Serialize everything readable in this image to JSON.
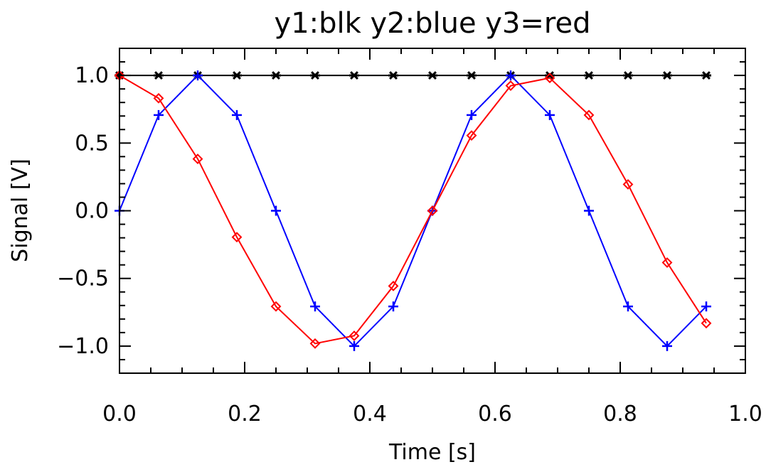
{
  "chart_data": {
    "type": "line",
    "title": "y1:blk y2:blue y3=red",
    "xlabel": "Time [s]",
    "ylabel": "Signal [V]",
    "xlim": [
      0.0,
      1.0
    ],
    "ylim": [
      -1.2,
      1.2
    ],
    "x_ticks": [
      0.0,
      0.2,
      0.4,
      0.6,
      0.8,
      1.0
    ],
    "x_tick_labels": [
      "0.0",
      "0.2",
      "0.4",
      "0.6",
      "0.8",
      "1.0"
    ],
    "y_ticks": [
      1.0,
      0.5,
      0.0,
      -0.5,
      -1.0
    ],
    "y_tick_labels": [
      "1.0",
      "0.5",
      "0.0",
      "−0.5",
      "−1.0"
    ],
    "grid": false,
    "x": [
      0.0,
      0.0625,
      0.125,
      0.1875,
      0.25,
      0.3125,
      0.375,
      0.4375,
      0.5,
      0.5625,
      0.625,
      0.6875,
      0.75,
      0.8125,
      0.875,
      0.9375
    ],
    "series": [
      {
        "color": "#000000",
        "marker": "asterisk",
        "values": [
          1,
          1,
          1,
          1,
          1,
          1,
          1,
          1,
          1,
          1,
          1,
          1,
          1,
          1,
          1,
          1
        ]
      },
      {
        "color": "#0000ff",
        "marker": "plus",
        "values": [
          0.0,
          0.707,
          1.0,
          0.707,
          0.0,
          -0.707,
          -1.0,
          -0.707,
          0.0,
          0.707,
          1.0,
          0.707,
          0.0,
          -0.707,
          -1.0,
          -0.707
        ]
      },
      {
        "color": "#ff0000",
        "marker": "diamond",
        "values": [
          1.0,
          0.831,
          0.383,
          -0.195,
          -0.707,
          -0.981,
          -0.924,
          -0.556,
          0.0,
          0.556,
          0.924,
          0.981,
          0.707,
          0.195,
          -0.383,
          -0.831
        ]
      }
    ]
  }
}
